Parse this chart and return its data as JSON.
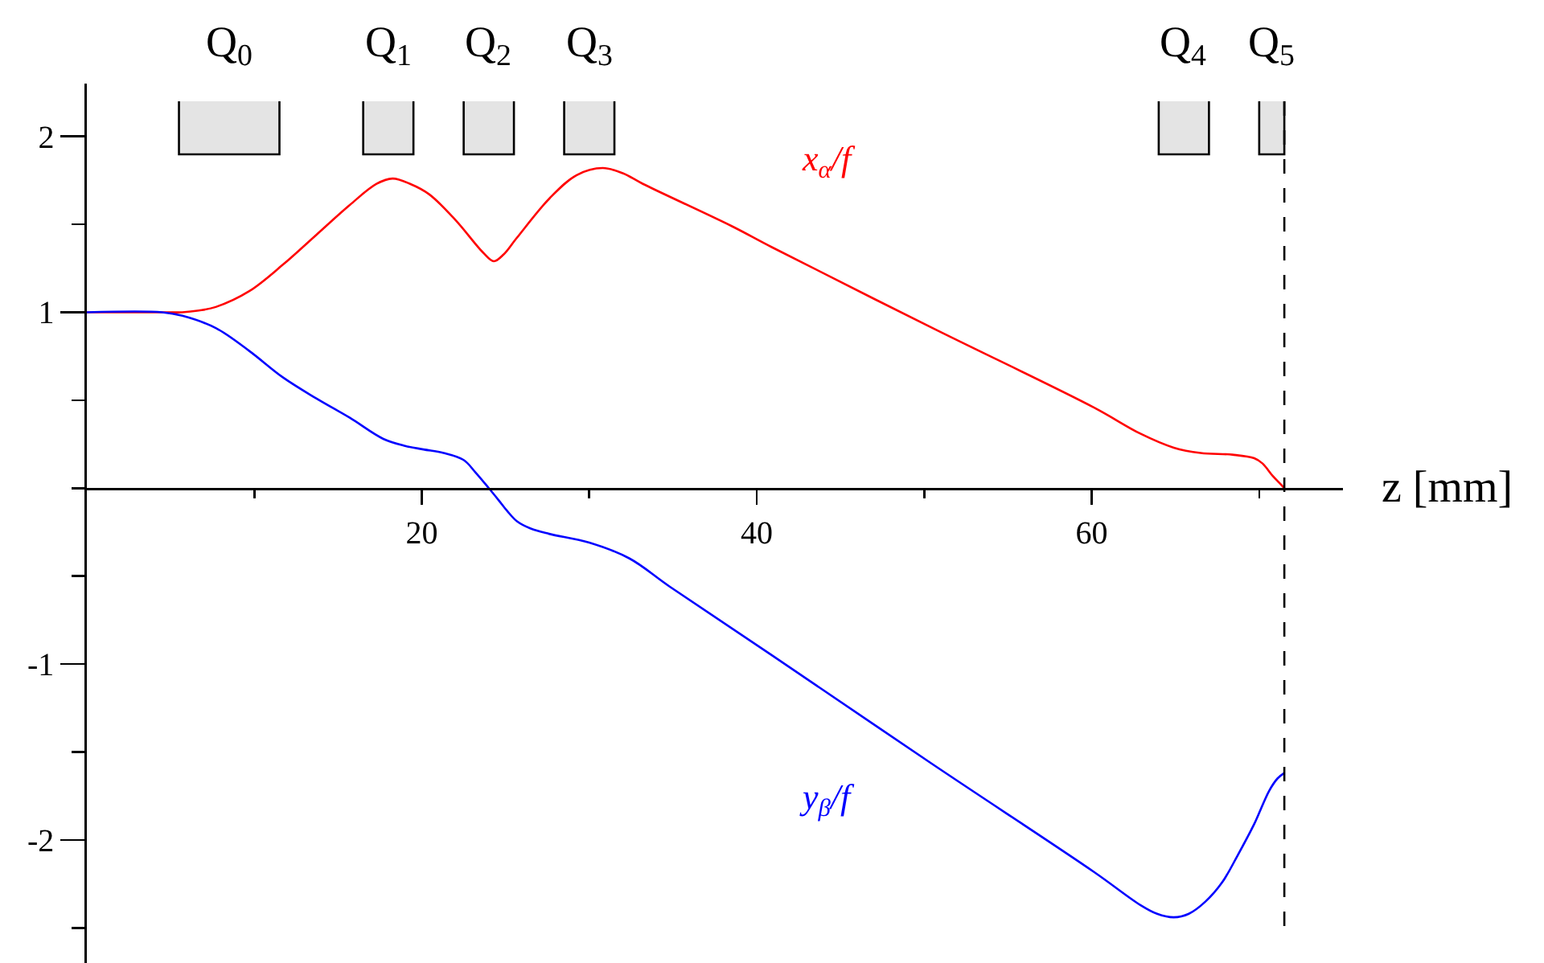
{
  "chart_data": {
    "type": "line",
    "xlabel": "z [mm]",
    "series": [
      {
        "name": "x$_{α}$/f",
        "color": "#ff0000",
        "x": [
          0,
          4.5,
          5.7,
          6.7,
          7.7,
          9.7,
          11.7,
          13.7,
          15.7,
          17.3,
          18.25,
          19.3,
          20.45,
          22.05,
          23.65,
          24.3,
          24.9,
          25.65,
          27.65,
          29.25,
          30.8,
          32,
          33.2,
          38.5,
          40.9,
          50.5,
          60.1,
          62.9,
          64.9,
          66.5,
          68.4,
          69.7,
          70.2,
          70.8,
          71.2,
          71.5
        ],
        "values": [
          1,
          1,
          1,
          1.01,
          1.03,
          1.12,
          1.27,
          1.44,
          1.61,
          1.73,
          1.76,
          1.73,
          1.67,
          1.52,
          1.34,
          1.29,
          1.33,
          1.42,
          1.65,
          1.78,
          1.82,
          1.79,
          1.73,
          1.49,
          1.37,
          0.91,
          0.46,
          0.31,
          0.23,
          0.2,
          0.19,
          0.17,
          0.14,
          0.07,
          0.03,
          0
        ]
      },
      {
        "name": "y$_{β}$/f",
        "color": "#0000ff",
        "x": [
          0,
          4.5,
          5.7,
          7.7,
          9.7,
          11.7,
          13.7,
          15.7,
          17.7,
          19,
          20.1,
          21.3,
          22.5,
          23.2,
          24,
          24.6,
          25.1,
          25.7,
          26.5,
          27.6,
          30,
          32.4,
          34.8,
          40.9,
          50.5,
          60.1,
          62.9,
          63.9,
          64.9,
          65.8,
          66.8,
          67.8,
          68.7,
          69.7,
          70.6,
          71.1,
          71.5
        ],
        "values": [
          1,
          1,
          0.98,
          0.91,
          0.78,
          0.63,
          0.51,
          0.4,
          0.28,
          0.24,
          0.22,
          0.2,
          0.16,
          0.09,
          0,
          -0.07,
          -0.13,
          -0.19,
          -0.23,
          -0.26,
          -0.31,
          -0.4,
          -0.56,
          -0.95,
          -1.57,
          -2.18,
          -2.37,
          -2.42,
          -2.44,
          -2.42,
          -2.35,
          -2.24,
          -2.09,
          -1.91,
          -1.72,
          -1.65,
          -1.62
        ]
      }
    ],
    "xlim": [
      0,
      75
    ],
    "xticks": [
      {
        "value": 10,
        "label": null
      },
      20,
      {
        "value": 30,
        "label": null
      },
      40,
      {
        "value": 50,
        "label": null
      },
      60,
      {
        "value": 70,
        "label": null
      }
    ],
    "ylim": [
      -2.7,
      2.3
    ],
    "yticks": [
      {
        "value": -2.5,
        "label": null
      },
      -2,
      {
        "value": -1.5,
        "label": null
      },
      -1,
      {
        "value": -0.5,
        "label": null
      },
      {
        "value": 0,
        "label": null
      },
      {
        "value": 0.5,
        "label": null
      },
      1,
      {
        "value": 1.5,
        "label": null
      },
      2
    ],
    "grid": false,
    "legend": false,
    "marker": "none",
    "line_style": "solid",
    "bands": [
      {
        "axis": "x",
        "from": 5.5,
        "to": 11.5,
        "label": "Q$_{0}$"
      },
      {
        "axis": "x",
        "from": 16.5,
        "to": 19.5,
        "label": "Q$_{1}$"
      },
      {
        "axis": "x",
        "from": 22.5,
        "to": 25.5,
        "label": "Q$_{2}$"
      },
      {
        "axis": "x",
        "from": 28.5,
        "to": 31.5,
        "label": "Q$_{3}$"
      },
      {
        "axis": "x",
        "from": 64,
        "to": 67,
        "label": "Q$_{4}$"
      },
      {
        "axis": "x",
        "from": 70,
        "to": 71.5,
        "label": "Q$_{5}$"
      }
    ],
    "ref_lines": [
      {
        "axis": "x",
        "value": 71.5,
        "line_style": "dashed"
      }
    ]
  }
}
